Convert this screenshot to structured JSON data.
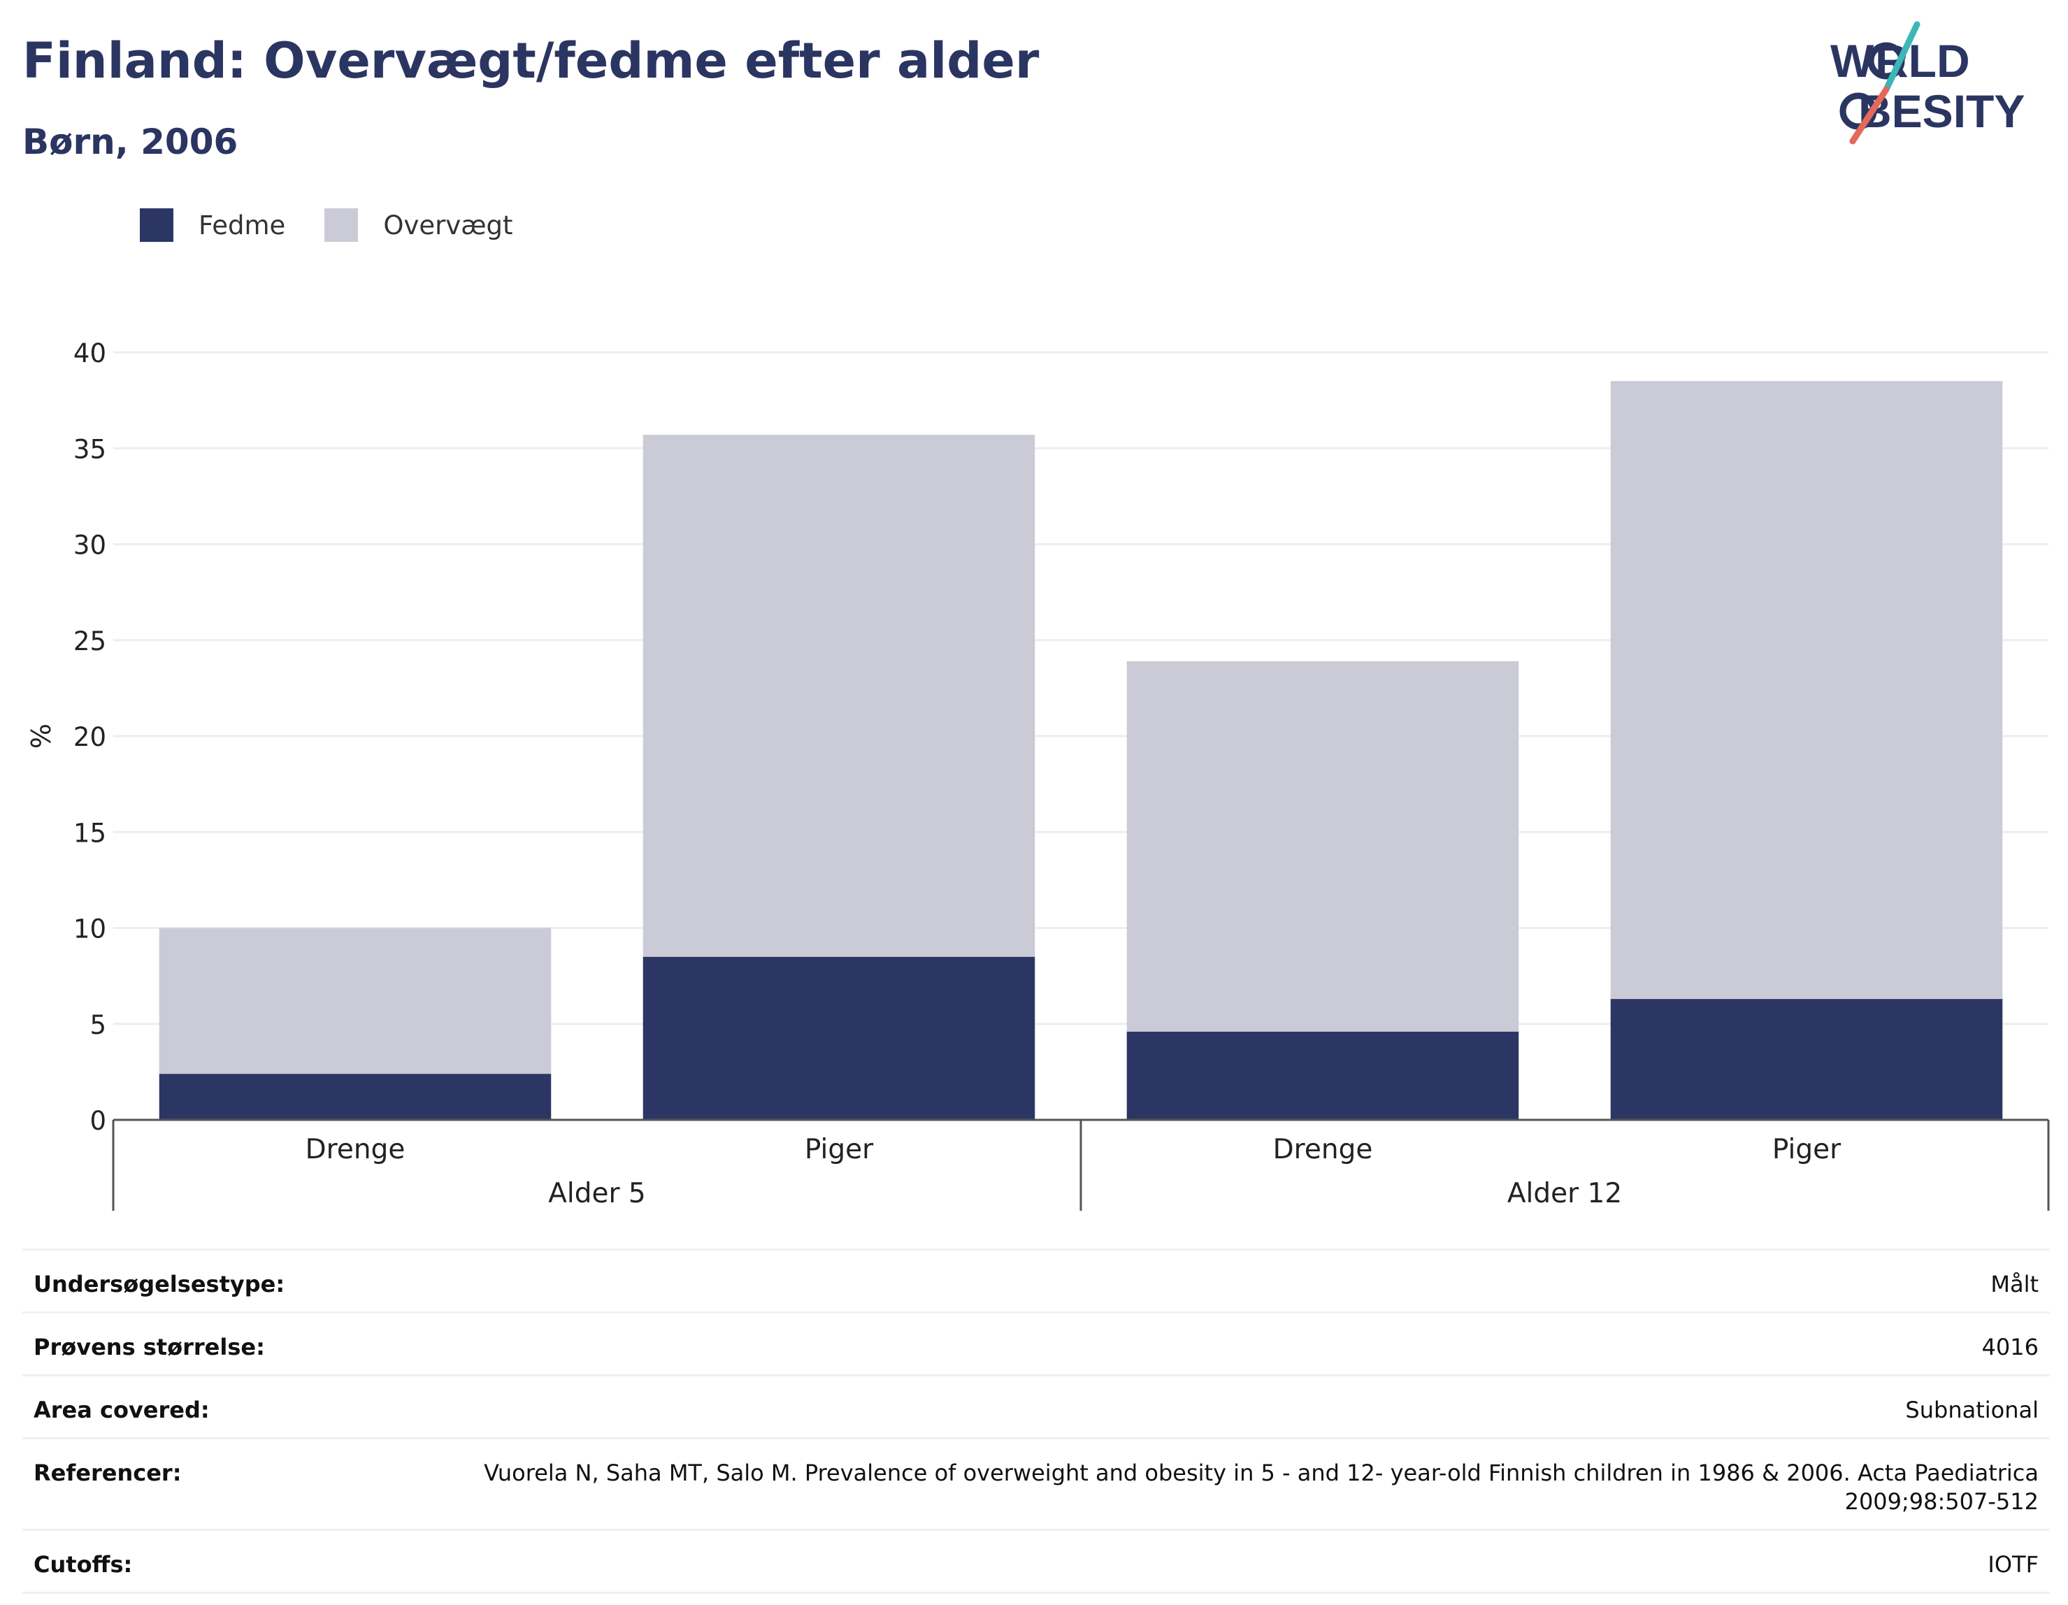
{
  "header": {
    "title": "Finland: Overvægt/fedme efter alder",
    "subtitle": "Børn, 2006"
  },
  "logo": {
    "line1": "WORLD",
    "line2": "OBESITY"
  },
  "legend": [
    {
      "label": "Fedme",
      "color": "#2b3665"
    },
    {
      "label": "Overvægt",
      "color": "#cacbd6"
    }
  ],
  "chart_data": {
    "type": "bar",
    "stacked": true,
    "ylabel": "%",
    "ylim": [
      0,
      40
    ],
    "yticks": [
      0,
      5,
      10,
      15,
      20,
      25,
      30,
      35,
      40
    ],
    "grid": true,
    "legend_position": "top-left",
    "categories": [
      "Drenge",
      "Piger",
      "Drenge",
      "Piger"
    ],
    "groups": [
      {
        "label": "Alder 5",
        "span": [
          0,
          1
        ]
      },
      {
        "label": "Alder 12",
        "span": [
          2,
          3
        ]
      }
    ],
    "series": [
      {
        "name": "Fedme",
        "color": "#2b3665",
        "values": [
          2.4,
          8.5,
          4.6,
          6.3
        ]
      },
      {
        "name": "Overvægt",
        "color": "#cacbd6",
        "values": [
          7.6,
          27.2,
          19.3,
          32.2
        ]
      }
    ]
  },
  "info": [
    {
      "label": "Undersøgelsestype:",
      "value": "Målt"
    },
    {
      "label": "Prøvens størrelse:",
      "value": "4016"
    },
    {
      "label": "Area covered:",
      "value": "Subnational"
    },
    {
      "label": "Referencer:",
      "value": "Vuorela N, Saha MT, Salo M. Prevalence of overweight and obesity in 5 - and 12- year-old Finnish children in 1986 & 2006. Acta Paediatrica 2009;98:507-512"
    },
    {
      "label": "Cutoffs:",
      "value": "IOTF"
    }
  ]
}
